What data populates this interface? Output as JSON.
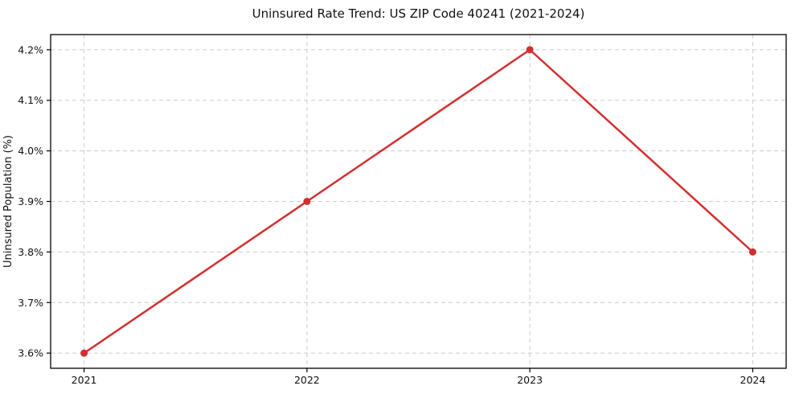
{
  "chart_data": {
    "type": "line",
    "title": "Uninsured Rate Trend: US ZIP Code 40241 (2021-2024)",
    "xlabel": "",
    "ylabel": "Uninsured Population (%)",
    "x": [
      2021,
      2022,
      2023,
      2024
    ],
    "y": [
      3.6,
      3.9,
      4.2,
      3.8
    ],
    "xticks": [
      2021,
      2022,
      2023,
      2024
    ],
    "xtick_labels": [
      "2021",
      "2022",
      "2023",
      "2024"
    ],
    "yticks": [
      3.6,
      3.7,
      3.8,
      3.9,
      4.0,
      4.1,
      4.2
    ],
    "ytick_labels": [
      "3.6%",
      "3.7%",
      "3.8%",
      "3.9%",
      "4.0%",
      "4.1%",
      "4.2%"
    ],
    "xlim": [
      2020.85,
      2024.15
    ],
    "ylim": [
      3.57,
      4.23
    ],
    "grid": true,
    "grid_style": "dashed",
    "legend": false,
    "marker": "circle",
    "colors": {
      "line": "#d32f2f",
      "marker": "#d32f2f",
      "grid": "#cccccc",
      "spine": "#000000",
      "text": "#111111"
    }
  }
}
